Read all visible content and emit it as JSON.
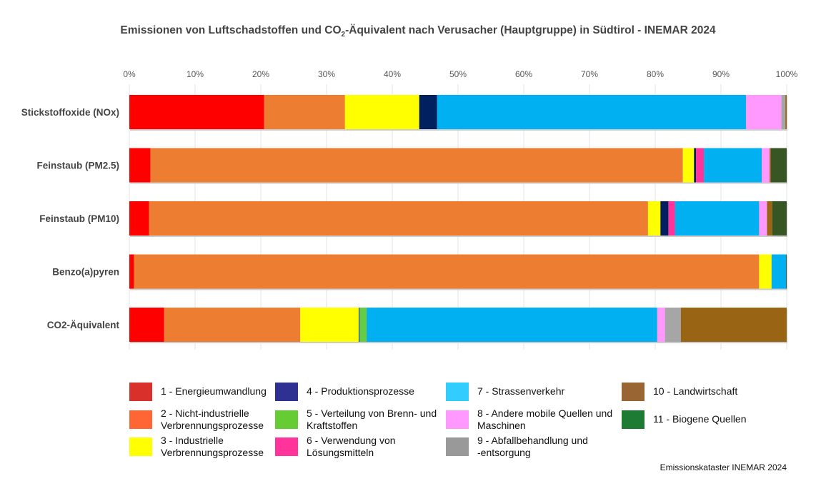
{
  "chart_data": {
    "type": "bar",
    "orientation": "horizontal",
    "stacked": "percent",
    "title_parts": [
      "Emissionen von Luftschadstoffen und CO",
      "2",
      "-Äquivalent nach Verusacher (Hauptgruppe) in Südtirol - INEMAR 2024"
    ],
    "xlim": [
      0,
      100
    ],
    "x_ticks": [
      "0%",
      "10%",
      "20%",
      "30%",
      "40%",
      "50%",
      "60%",
      "70%",
      "80%",
      "90%",
      "100%"
    ],
    "x_axis_position": "top",
    "grid": true,
    "legend_placement": "bottom",
    "categories": [
      "Stickstoffoxide (NOx)",
      "Feinstaub (PM2.5)",
      "Feinstaub (PM10)",
      "Benzo(a)pyren",
      "CO2-Äquivalent"
    ],
    "series": [
      {
        "name": "1 - Energieumwandlung",
        "color": "#FF0000",
        "legend_color": "#D9302C",
        "values": [
          20.5,
          3.2,
          3.0,
          0.7,
          5.3
        ]
      },
      {
        "name": "2 - Nicht-industrielle Verbrennungsprozesse",
        "color": "#ED7D31",
        "legend_color": "#FF6633",
        "values": [
          12.3,
          81.0,
          75.9,
          95.1,
          20.7
        ]
      },
      {
        "name": "3 - Industrielle Verbrennungsprozesse",
        "color": "#FFFF00",
        "legend_color": "#FFFF00",
        "values": [
          11.3,
          1.7,
          1.9,
          1.9,
          8.9
        ]
      },
      {
        "name": "4 - Produktionsprozesse",
        "color": "#002060",
        "legend_color": "#2E3192",
        "values": [
          2.7,
          0.3,
          1.2,
          0,
          0.1
        ]
      },
      {
        "name": "5 - Verteilung von Brenn- und Kraftstoffen",
        "color": "#66CC44",
        "legend_color": "#66CC33",
        "values": [
          0,
          0,
          0,
          0,
          1.1
        ]
      },
      {
        "name": "6 - Verwendung von Lösungsmitteln",
        "color": "#FF3399",
        "legend_color": "#FF3399",
        "values": [
          0,
          1.2,
          1.0,
          0,
          0
        ]
      },
      {
        "name": "7 - Strassenverkehr",
        "color": "#00B0F0",
        "legend_color": "#33CCFF",
        "values": [
          47.0,
          8.8,
          12.8,
          2.2,
          44.2
        ]
      },
      {
        "name": "8 - Andere mobile Quellen und Maschinen",
        "color": "#FF99FF",
        "legend_color": "#FF99FF",
        "values": [
          5.4,
          1.2,
          1.2,
          0,
          1.2
        ]
      },
      {
        "name": "9 - Abfallbehandlung und -entsorgung",
        "color": "#A6A6A6",
        "legend_color": "#999999",
        "values": [
          0.6,
          0,
          0,
          0,
          2.4
        ]
      },
      {
        "name": "10 - Landwirtschaft",
        "color": "#996515",
        "legend_color": "#996633",
        "values": [
          0.2,
          0.2,
          0.8,
          0,
          16.1
        ]
      },
      {
        "name": "11 - Biogene Quellen",
        "color": "#375623",
        "legend_color": "#1E7B34",
        "values": [
          0,
          2.4,
          2.2,
          0.1,
          0
        ]
      }
    ]
  },
  "legend_labels": [
    [
      "1 - Energieumwandlung"
    ],
    [
      "2 - Nicht-industrielle",
      "Verbrennungsprozesse"
    ],
    [
      "3 - Industrielle",
      "Verbrennungsprozesse"
    ],
    [
      "4 - Produktionsprozesse"
    ],
    [
      "5 - Verteilung von Brenn- und",
      "Kraftstoffen"
    ],
    [
      "6 - Verwendung von",
      "Lösungsmitteln"
    ],
    [
      "7 - Strassenverkehr"
    ],
    [
      "8 - Andere mobile Quellen und",
      "Maschinen"
    ],
    [
      "9 - Abfallbehandlung und",
      "-entsorgung"
    ],
    [
      "10 - Landwirtschaft"
    ],
    [
      "11 - Biogene Quellen"
    ]
  ],
  "footer": "Emissionskataster INEMAR 2024"
}
